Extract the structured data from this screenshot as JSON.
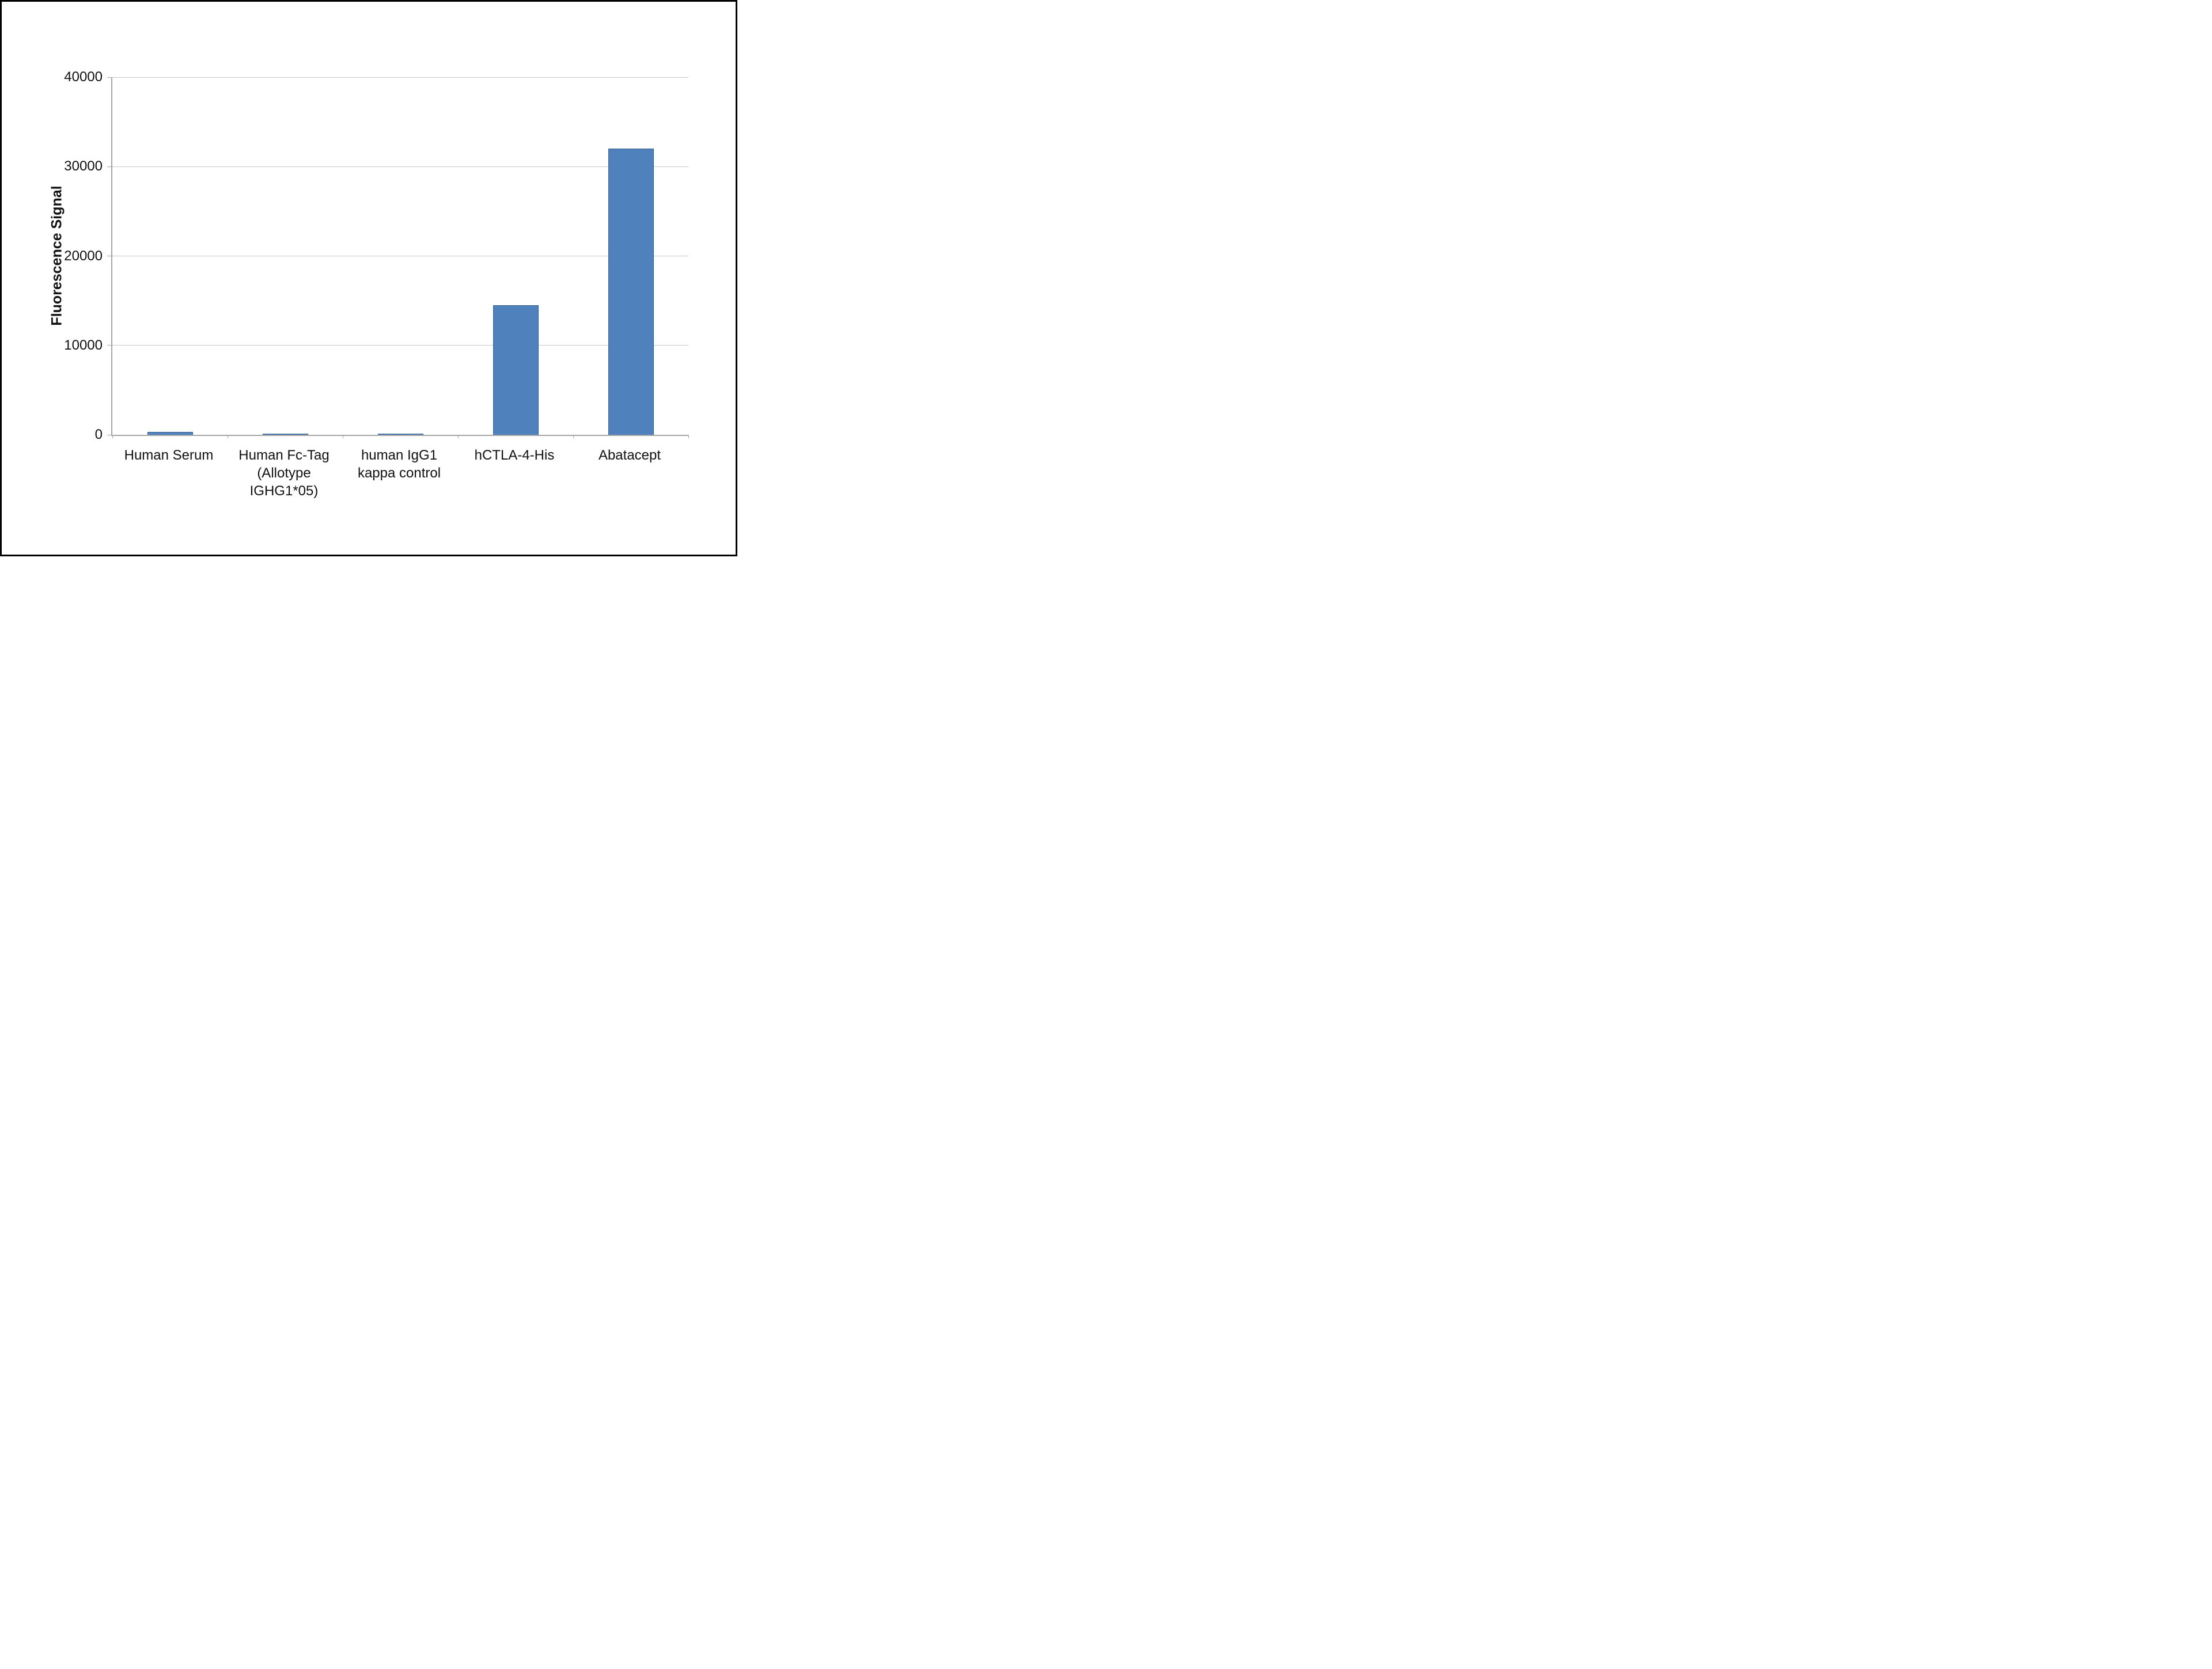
{
  "figure": {
    "background_color": "#ffffff",
    "frame_color": "#000000"
  },
  "chart_data": {
    "type": "bar",
    "title": "",
    "xlabel": "",
    "ylabel": "Fluorescence Signal",
    "categories": [
      "Human Serum",
      "Human Fc-Tag (Allotype IGHG1*05)",
      "human IgG1 kappa control",
      "hCTLA-4-His",
      "Abatacept"
    ],
    "values": [
      300,
      100,
      100,
      14500,
      32000
    ],
    "ylim": [
      0,
      40000
    ],
    "yticks": [
      0,
      10000,
      20000,
      30000,
      40000
    ],
    "grid": "horizontal-major",
    "legend_position": "none",
    "bar_color": "#4f81bd",
    "bar_border_color": "#38618f",
    "axis_line_color": "#a6a6a6",
    "gridline_color": "#c8c8c8",
    "tick_label_color": "#111111"
  }
}
